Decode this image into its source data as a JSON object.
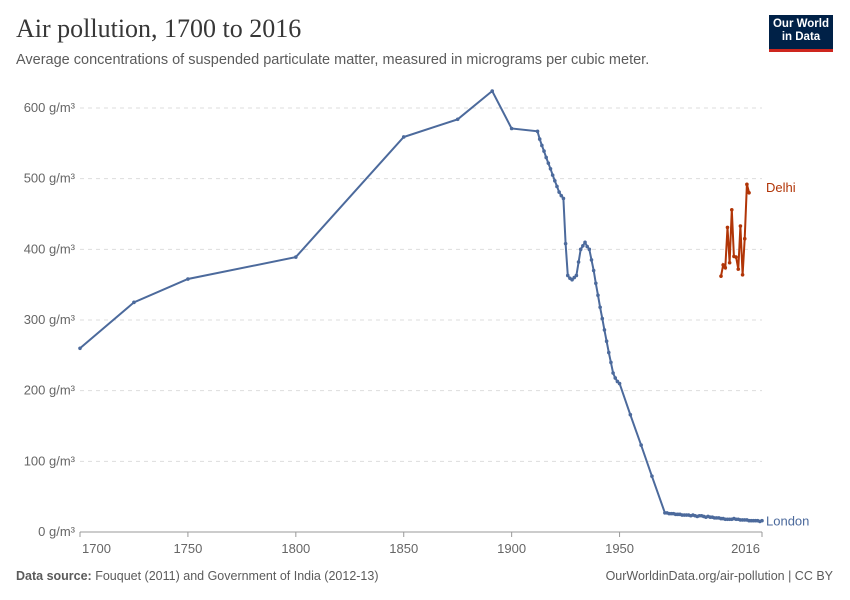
{
  "header": {
    "title": "Air pollution, 1700 to 2016",
    "subtitle": "Average concentrations of suspended particulate matter, measured in micrograms per cubic meter.",
    "logo_line1": "Our World",
    "logo_line2": "in Data"
  },
  "footer": {
    "source_label": "Data source:",
    "source_text": "Fouquet (2011) and Government of India (2012-13)",
    "url": "OurWorldinData.org/air-pollution | CC BY"
  },
  "chart_data": {
    "type": "line",
    "title": "Air pollution, 1700 to 2016",
    "xlim": [
      1700,
      2016
    ],
    "ylim": [
      0,
      600
    ],
    "x_ticks": [
      1700,
      1750,
      1800,
      1850,
      1900,
      1950,
      2016
    ],
    "y_ticks": [
      0,
      100,
      200,
      300,
      400,
      500,
      600
    ],
    "y_unit": "g/m³",
    "grid": "horizontal dashed",
    "legend": "inline-right",
    "series": [
      {
        "name": "London",
        "color": "#4c6a9c",
        "points": [
          [
            1700,
            260
          ],
          [
            1725,
            325
          ],
          [
            1750,
            358
          ],
          [
            1800,
            389
          ],
          [
            1850,
            559
          ],
          [
            1875,
            584
          ],
          [
            1891,
            624
          ],
          [
            1900,
            571
          ],
          [
            1912,
            567
          ],
          [
            1913,
            556
          ],
          [
            1914,
            547
          ],
          [
            1915,
            539
          ],
          [
            1916,
            530
          ],
          [
            1917,
            522
          ],
          [
            1918,
            514
          ],
          [
            1919,
            505
          ],
          [
            1920,
            497
          ],
          [
            1921,
            489
          ],
          [
            1922,
            481
          ],
          [
            1923,
            476
          ],
          [
            1924,
            472
          ],
          [
            1925,
            408
          ],
          [
            1926,
            363
          ],
          [
            1927,
            359
          ],
          [
            1928,
            357
          ],
          [
            1929,
            360
          ],
          [
            1930,
            363
          ],
          [
            1931,
            382
          ],
          [
            1932,
            400
          ],
          [
            1933,
            405
          ],
          [
            1934,
            410
          ],
          [
            1935,
            404
          ],
          [
            1936,
            400
          ],
          [
            1937,
            385
          ],
          [
            1938,
            370
          ],
          [
            1939,
            352
          ],
          [
            1940,
            335
          ],
          [
            1941,
            318
          ],
          [
            1942,
            302
          ],
          [
            1943,
            286
          ],
          [
            1944,
            270
          ],
          [
            1945,
            254
          ],
          [
            1946,
            240
          ],
          [
            1947,
            225
          ],
          [
            1948,
            218
          ],
          [
            1949,
            213
          ],
          [
            1950,
            210
          ],
          [
            1955,
            166
          ],
          [
            1960,
            123
          ],
          [
            1965,
            79
          ],
          [
            1971,
            27
          ],
          [
            1972,
            27
          ],
          [
            1973,
            26
          ],
          [
            1974,
            26
          ],
          [
            1975,
            26
          ],
          [
            1976,
            25
          ],
          [
            1977,
            25
          ],
          [
            1978,
            25
          ],
          [
            1979,
            24
          ],
          [
            1980,
            24
          ],
          [
            1981,
            24
          ],
          [
            1982,
            24
          ],
          [
            1983,
            23
          ],
          [
            1984,
            24
          ],
          [
            1985,
            23
          ],
          [
            1986,
            22
          ],
          [
            1987,
            23
          ],
          [
            1988,
            23
          ],
          [
            1989,
            22
          ],
          [
            1990,
            21
          ],
          [
            1991,
            22
          ],
          [
            1992,
            21
          ],
          [
            1993,
            21
          ],
          [
            1994,
            20
          ],
          [
            1995,
            20
          ],
          [
            1996,
            20
          ],
          [
            1997,
            19
          ],
          [
            1998,
            19
          ],
          [
            1999,
            18
          ],
          [
            2000,
            18
          ],
          [
            2001,
            18
          ],
          [
            2002,
            18
          ],
          [
            2003,
            19
          ],
          [
            2004,
            18
          ],
          [
            2005,
            18
          ],
          [
            2006,
            17
          ],
          [
            2007,
            17
          ],
          [
            2008,
            17
          ],
          [
            2009,
            17
          ],
          [
            2010,
            16
          ],
          [
            2011,
            16
          ],
          [
            2012,
            16
          ],
          [
            2013,
            16
          ],
          [
            2014,
            16
          ],
          [
            2015,
            15
          ],
          [
            2016,
            16
          ]
        ]
      },
      {
        "name": "Delhi",
        "color": "#b13507",
        "points": [
          [
            1997,
            362
          ],
          [
            1998,
            378
          ],
          [
            1999,
            374
          ],
          [
            2000,
            431
          ],
          [
            2001,
            381
          ],
          [
            2002,
            456
          ],
          [
            2003,
            390
          ],
          [
            2004,
            389
          ],
          [
            2005,
            372
          ],
          [
            2006,
            433
          ],
          [
            2007,
            364
          ],
          [
            2008,
            415
          ],
          [
            2009,
            492
          ],
          [
            2010,
            480
          ]
        ]
      }
    ]
  }
}
